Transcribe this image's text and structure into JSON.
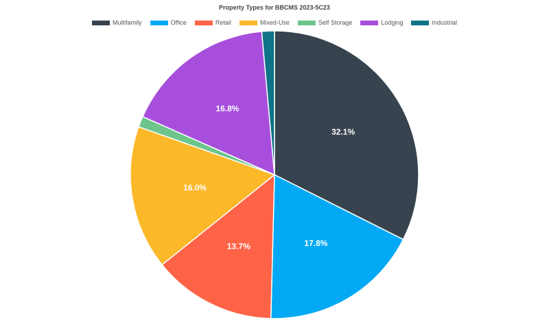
{
  "chart_data": {
    "type": "pie",
    "title": "Property Types for BBCMS 2023-5C23",
    "legend_position": "top",
    "slices": [
      {
        "name": "Multifamily",
        "value": 32.1,
        "label": "32.1%",
        "color": "#37434e"
      },
      {
        "name": "Office",
        "value": 17.8,
        "label": "17.8%",
        "color": "#03a9f4"
      },
      {
        "name": "Retail",
        "value": 13.7,
        "label": "13.7%",
        "color": "#ff6347"
      },
      {
        "name": "Mixed-Use",
        "value": 16.0,
        "label": "16.0%",
        "color": "#fbb829"
      },
      {
        "name": "Self Storage",
        "value": 1.2,
        "label": "",
        "color": "#6dc58c"
      },
      {
        "name": "Lodging",
        "value": 16.8,
        "label": "16.8%",
        "color": "#a74fdc"
      },
      {
        "name": "Industrial",
        "value": 1.4,
        "label": "",
        "color": "#0f7487"
      }
    ]
  }
}
